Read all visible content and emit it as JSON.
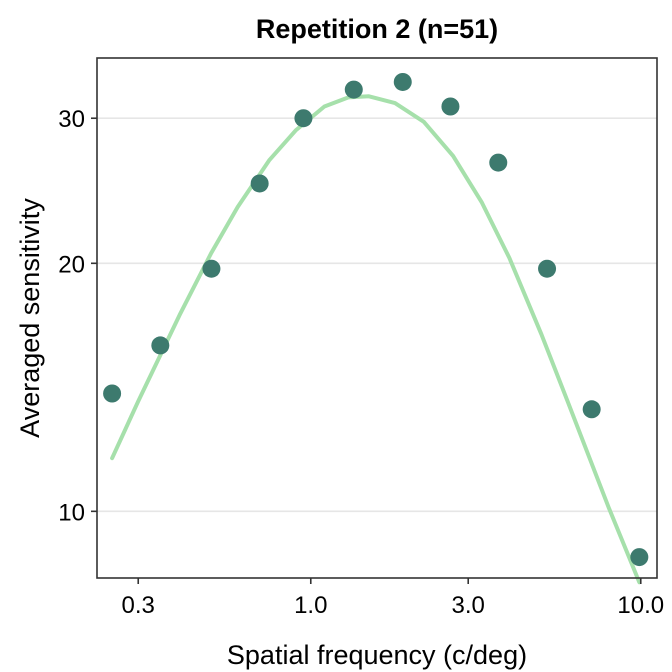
{
  "chart_data": {
    "type": "scatter",
    "title": "Repetition 2 (n=51)",
    "xlabel": "Spatial frequency (c/deg)",
    "ylabel": "Averaged sensitivity",
    "x_scale": "log",
    "y_scale": "log",
    "xlim": [
      0.225,
      11.2
    ],
    "ylim": [
      8.3,
      35.5
    ],
    "x_ticks": [
      0.3,
      1.0,
      3.0,
      10.0
    ],
    "x_tick_labels": [
      "0.3",
      "1.0",
      "3.0",
      "10.0"
    ],
    "y_ticks": [
      10,
      20,
      30
    ],
    "y_tick_labels": [
      "10",
      "20",
      "30"
    ],
    "grid": "horizontal major",
    "legend": "none",
    "points": {
      "x": [
        0.25,
        0.35,
        0.5,
        0.7,
        0.95,
        1.35,
        1.9,
        2.65,
        3.7,
        5.2,
        7.1,
        9.9
      ],
      "y": [
        13.9,
        15.9,
        19.7,
        25.0,
        30.0,
        32.5,
        33.2,
        31.0,
        26.5,
        19.7,
        13.3,
        8.8
      ],
      "color": "#3d7a6e"
    },
    "fit_curve": {
      "x": [
        0.25,
        0.3,
        0.4,
        0.5,
        0.6,
        0.75,
        0.9,
        1.1,
        1.3,
        1.5,
        1.8,
        2.2,
        2.7,
        3.3,
        4.0,
        5.0,
        6.0,
        7.0,
        8.0,
        9.0,
        9.9
      ],
      "y": [
        11.6,
        13.6,
        17.3,
        20.6,
        23.4,
        26.7,
        29.0,
        31.0,
        31.8,
        31.9,
        31.3,
        29.7,
        27.0,
        23.7,
        20.3,
        16.4,
        13.6,
        11.6,
        10.1,
        9.0,
        8.2
      ],
      "color": "#a6e0ab"
    }
  }
}
